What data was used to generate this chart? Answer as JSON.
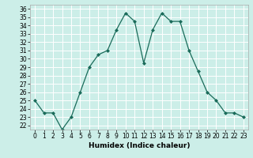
{
  "x": [
    0,
    1,
    2,
    3,
    4,
    5,
    6,
    7,
    8,
    9,
    10,
    11,
    12,
    13,
    14,
    15,
    16,
    17,
    18,
    19,
    20,
    21,
    22,
    23
  ],
  "y": [
    25.0,
    23.5,
    23.5,
    21.5,
    23.0,
    26.0,
    29.0,
    30.5,
    31.0,
    33.5,
    35.5,
    34.5,
    29.5,
    33.5,
    35.5,
    34.5,
    34.5,
    31.0,
    28.5,
    26.0,
    25.0,
    23.5,
    23.5,
    23.0
  ],
  "xlabel": "Humidex (Indice chaleur)",
  "ylim": [
    21.5,
    36.5
  ],
  "xlim": [
    -0.5,
    23.5
  ],
  "yticks": [
    22,
    23,
    24,
    25,
    26,
    27,
    28,
    29,
    30,
    31,
    32,
    33,
    34,
    35,
    36
  ],
  "xticks": [
    0,
    1,
    2,
    3,
    4,
    5,
    6,
    7,
    8,
    9,
    10,
    11,
    12,
    13,
    14,
    15,
    16,
    17,
    18,
    19,
    20,
    21,
    22,
    23
  ],
  "line_color": "#1a6b5a",
  "marker": "D",
  "marker_size": 2,
  "bg_color": "#cceee8",
  "grid_color": "#ffffff",
  "spine_color": "#aaaaaa",
  "tick_fontsize": 5.5,
  "xlabel_fontsize": 6.5
}
